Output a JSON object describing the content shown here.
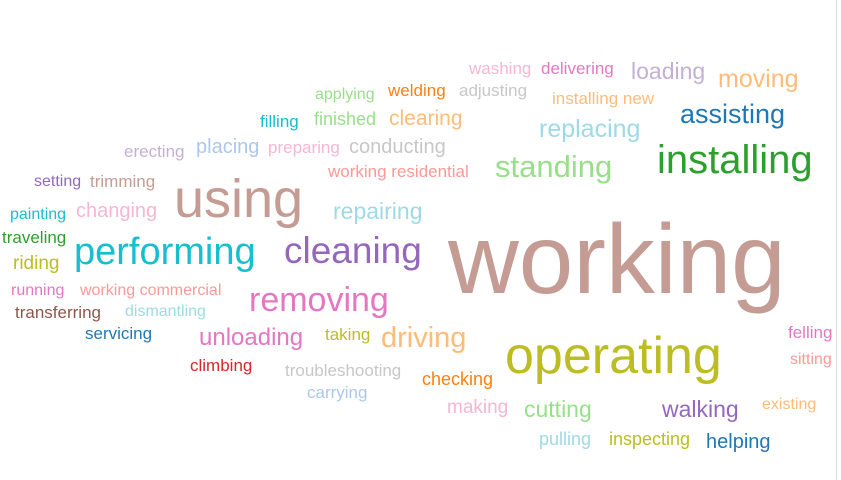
{
  "words": [
    {
      "text": "working",
      "color": "#c49c94"
    },
    {
      "text": "operating",
      "color": "#bcbd22"
    },
    {
      "text": "installing",
      "color": "#2ca02c"
    },
    {
      "text": "using",
      "color": "#c49c94"
    },
    {
      "text": "performing",
      "color": "#17becf"
    },
    {
      "text": "cleaning",
      "color": "#9467bd"
    },
    {
      "text": "removing",
      "color": "#e377c2"
    },
    {
      "text": "standing",
      "color": "#98df8a"
    },
    {
      "text": "driving",
      "color": "#ffbb78"
    },
    {
      "text": "unloading",
      "color": "#e377c2"
    },
    {
      "text": "assisting",
      "color": "#1f77b4"
    },
    {
      "text": "replacing",
      "color": "#9edae5"
    },
    {
      "text": "moving",
      "color": "#ffbb78"
    },
    {
      "text": "loading",
      "color": "#c5b0d5"
    },
    {
      "text": "repairing",
      "color": "#9edae5"
    },
    {
      "text": "walking",
      "color": "#9467bd"
    },
    {
      "text": "cutting",
      "color": "#98df8a"
    },
    {
      "text": "clearing",
      "color": "#ffbb78"
    },
    {
      "text": "changing",
      "color": "#f7b6d2"
    },
    {
      "text": "placing",
      "color": "#aec7e8"
    },
    {
      "text": "conducting",
      "color": "#c7c7c7"
    },
    {
      "text": "helping",
      "color": "#1f77b4"
    },
    {
      "text": "checking",
      "color": "#ff7f0e"
    },
    {
      "text": "making",
      "color": "#f7b6d2"
    },
    {
      "text": "pulling",
      "color": "#9edae5"
    },
    {
      "text": "inspecting",
      "color": "#bcbd22"
    },
    {
      "text": "washing",
      "color": "#f7b6d2"
    },
    {
      "text": "delivering",
      "color": "#e377c2"
    },
    {
      "text": "adjusting",
      "color": "#c7c7c7"
    },
    {
      "text": "welding",
      "color": "#ff7f0e"
    },
    {
      "text": "applying",
      "color": "#98df8a"
    },
    {
      "text": "installing new",
      "color": "#ffbb78"
    },
    {
      "text": "filling",
      "color": "#17becf"
    },
    {
      "text": "finished",
      "color": "#98df8a"
    },
    {
      "text": "erecting",
      "color": "#c5b0d5"
    },
    {
      "text": "preparing",
      "color": "#f7b6d2"
    },
    {
      "text": "working residential",
      "color": "#ff9896"
    },
    {
      "text": "setting",
      "color": "#9467bd"
    },
    {
      "text": "trimming",
      "color": "#c49c94"
    },
    {
      "text": "painting",
      "color": "#17becf"
    },
    {
      "text": "traveling",
      "color": "#2ca02c"
    },
    {
      "text": "riding",
      "color": "#bcbd22"
    },
    {
      "text": "running",
      "color": "#e377c2"
    },
    {
      "text": "working commercial",
      "color": "#ff9896"
    },
    {
      "text": "transferring",
      "color": "#8c564b"
    },
    {
      "text": "dismantling",
      "color": "#9edae5"
    },
    {
      "text": "servicing",
      "color": "#1f77b4"
    },
    {
      "text": "taking",
      "color": "#bcbd22"
    },
    {
      "text": "climbing",
      "color": "#d62728"
    },
    {
      "text": "troubleshooting",
      "color": "#c7c7c7"
    },
    {
      "text": "carrying",
      "color": "#aec7e8"
    },
    {
      "text": "felling",
      "color": "#e377c2"
    },
    {
      "text": "sitting",
      "color": "#ff9896"
    },
    {
      "text": "existing",
      "color": "#ffbb78"
    }
  ]
}
